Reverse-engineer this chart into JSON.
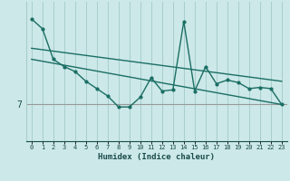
{
  "xlabel": "Humidex (Indice chaleur)",
  "bg_color": "#cce8e8",
  "line_color": "#1a6e64",
  "grid_color": "#a8cece",
  "hline_color": "#999999",
  "text_color": "#1a4a4a",
  "hline_y": 7,
  "xlim": [
    -0.5,
    23.5
  ],
  "ylim": [
    5.5,
    11.2
  ],
  "x_ticks": [
    0,
    1,
    2,
    3,
    4,
    5,
    6,
    7,
    8,
    9,
    10,
    11,
    12,
    13,
    14,
    15,
    16,
    17,
    18,
    19,
    20,
    21,
    22,
    23
  ],
  "data_x": [
    0,
    1,
    2,
    3,
    4,
    5,
    6,
    7,
    8,
    9,
    10,
    11,
    12,
    13,
    14,
    15,
    16,
    17,
    18,
    19,
    20,
    21,
    22,
    23
  ],
  "data_y": [
    10.5,
    10.1,
    8.85,
    8.55,
    8.35,
    7.95,
    7.65,
    7.35,
    6.9,
    6.9,
    7.3,
    8.1,
    7.55,
    7.6,
    10.4,
    7.55,
    8.55,
    7.85,
    8.0,
    7.9,
    7.65,
    7.7,
    7.65,
    7.0
  ],
  "trend1_x": [
    0,
    23
  ],
  "trend1_y": [
    9.3,
    7.95
  ],
  "trend2_x": [
    0,
    23
  ],
  "trend2_y": [
    8.85,
    7.0
  ],
  "marker_size": 4.0
}
